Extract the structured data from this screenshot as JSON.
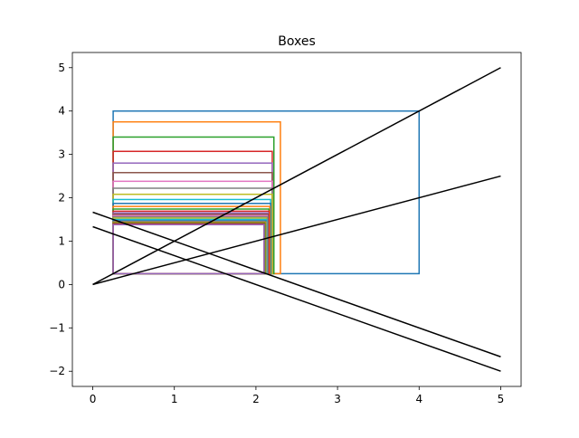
{
  "chart_data": {
    "type": "line",
    "title": "Boxes",
    "xlabel": "",
    "ylabel": "",
    "xlim": [
      -0.25,
      5.25
    ],
    "ylim": [
      -2.35,
      5.35
    ],
    "grid": false,
    "x_ticks": [
      0,
      1,
      2,
      3,
      4,
      5
    ],
    "y_ticks": [
      -2,
      -1,
      0,
      1,
      2,
      3,
      4,
      5
    ],
    "x_tick_labels": [
      "0",
      "1",
      "2",
      "3",
      "4",
      "5"
    ],
    "y_tick_labels": [
      "−2",
      "−1",
      "0",
      "1",
      "2",
      "3",
      "4",
      "5"
    ],
    "line_color": "#000000",
    "lines": [
      {
        "x": [
          0,
          5
        ],
        "y": [
          0,
          5
        ]
      },
      {
        "x": [
          0,
          5
        ],
        "y": [
          0,
          2.5
        ]
      },
      {
        "x": [
          0,
          5
        ],
        "y": [
          1.667,
          -1.667
        ]
      },
      {
        "x": [
          0,
          5
        ],
        "y": [
          1.333,
          -2.0
        ]
      }
    ],
    "box_origin": [
      0.25,
      0.25
    ],
    "boxes": [
      {
        "x1": 4.0,
        "y1": 4.0,
        "color": "#1f77b4"
      },
      {
        "x1": 2.3,
        "y1": 3.75,
        "color": "#ff7f0e"
      },
      {
        "x1": 2.22,
        "y1": 3.4,
        "color": "#2ca02c"
      },
      {
        "x1": 2.2,
        "y1": 3.07,
        "color": "#d62728"
      },
      {
        "x1": 2.2,
        "y1": 2.8,
        "color": "#9467bd"
      },
      {
        "x1": 2.2,
        "y1": 2.58,
        "color": "#8c564b"
      },
      {
        "x1": 2.2,
        "y1": 2.38,
        "color": "#e377c2"
      },
      {
        "x1": 2.2,
        "y1": 2.22,
        "color": "#7f7f7f"
      },
      {
        "x1": 2.2,
        "y1": 2.08,
        "color": "#bcbd22"
      },
      {
        "x1": 2.18,
        "y1": 1.96,
        "color": "#17becf"
      },
      {
        "x1": 2.18,
        "y1": 1.87,
        "color": "#1f77b4"
      },
      {
        "x1": 2.17,
        "y1": 1.8,
        "color": "#ff7f0e"
      },
      {
        "x1": 2.16,
        "y1": 1.74,
        "color": "#2ca02c"
      },
      {
        "x1": 2.16,
        "y1": 1.69,
        "color": "#d62728"
      },
      {
        "x1": 2.15,
        "y1": 1.65,
        "color": "#9467bd"
      },
      {
        "x1": 2.15,
        "y1": 1.62,
        "color": "#8c564b"
      },
      {
        "x1": 2.14,
        "y1": 1.59,
        "color": "#e377c2"
      },
      {
        "x1": 2.14,
        "y1": 1.56,
        "color": "#7f7f7f"
      },
      {
        "x1": 2.13,
        "y1": 1.53,
        "color": "#bcbd22"
      },
      {
        "x1": 2.13,
        "y1": 1.5,
        "color": "#17becf"
      },
      {
        "x1": 2.12,
        "y1": 1.47,
        "color": "#1f77b4"
      },
      {
        "x1": 2.12,
        "y1": 1.44,
        "color": "#ff7f0e"
      },
      {
        "x1": 2.11,
        "y1": 1.42,
        "color": "#2ca02c"
      },
      {
        "x1": 2.1,
        "y1": 1.4,
        "color": "#d62728"
      },
      {
        "x1": 2.1,
        "y1": 1.38,
        "color": "#9467bd"
      }
    ]
  }
}
